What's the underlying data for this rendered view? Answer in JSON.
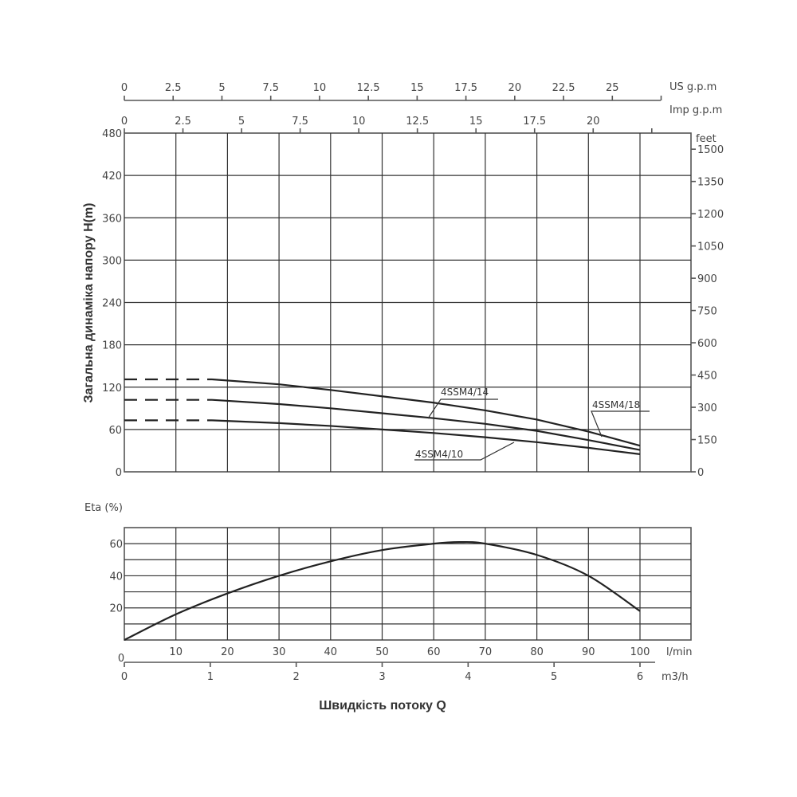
{
  "chart_data": [
    {
      "type": "line",
      "title": "",
      "ylabel": "Загальна динаміка напору H(m)",
      "xlabel": "Швидкість потоку Q",
      "x_unit": "l/min",
      "ylim": [
        0,
        480
      ],
      "xlim": [
        0,
        110
      ],
      "grid": true,
      "y_ticks": [
        0,
        60,
        120,
        180,
        240,
        300,
        360,
        420,
        480
      ],
      "y2_label": "feet",
      "y2_ticks": [
        0,
        150,
        300,
        450,
        600,
        750,
        900,
        1050,
        1200,
        1350,
        1500
      ],
      "top_axis_us": {
        "label": "US g.p.m",
        "ticks": [
          "0",
          "2.5",
          "5",
          "7.5",
          "10",
          "12.5",
          "15",
          "17.5",
          "20",
          "22.5",
          "25"
        ]
      },
      "top_axis_imp": {
        "label": "Imp g.p.m",
        "ticks": [
          "0",
          "2.5",
          "5",
          "7.5",
          "10",
          "12.5",
          "15",
          "17.5",
          "20"
        ]
      },
      "series": [
        {
          "name": "4SSM4/18",
          "dashed_x": [
            0,
            17
          ],
          "dashed_y": [
            131,
            131
          ],
          "x": [
            17,
            30,
            40,
            50,
            60,
            70,
            80,
            90,
            100
          ],
          "y": [
            131,
            124,
            116,
            107,
            98,
            87,
            74,
            57,
            37
          ]
        },
        {
          "name": "4SSM4/14",
          "dashed_x": [
            0,
            17
          ],
          "dashed_y": [
            102,
            102
          ],
          "x": [
            17,
            30,
            40,
            50,
            60,
            70,
            80,
            90,
            100
          ],
          "y": [
            102,
            96,
            90,
            83,
            76,
            68,
            58,
            45,
            31
          ]
        },
        {
          "name": "4SSM4/10",
          "dashed_x": [
            0,
            17
          ],
          "dashed_y": [
            73,
            73
          ],
          "x": [
            17,
            30,
            40,
            50,
            60,
            70,
            80,
            90,
            100
          ],
          "y": [
            73,
            69,
            65,
            60,
            55,
            49,
            42,
            34,
            25
          ]
        }
      ]
    },
    {
      "type": "line",
      "title": "",
      "ylabel": "Eta (%)",
      "xlabel": "Швидкість потоку Q",
      "ylim": [
        0,
        70
      ],
      "xlim": [
        0,
        110
      ],
      "grid": true,
      "y_ticks": [
        0,
        20,
        40,
        60
      ],
      "x_ticks_lmin": [
        0,
        10,
        20,
        30,
        40,
        50,
        60,
        70,
        80,
        90,
        100
      ],
      "x_unit": "l/min",
      "x2_ticks_m3h": [
        0,
        1,
        2,
        3,
        4,
        5,
        6
      ],
      "x2_unit": "m3/h",
      "series": [
        {
          "name": "Eta",
          "x": [
            0,
            10,
            20,
            30,
            40,
            50,
            60,
            65,
            70,
            80,
            90,
            100
          ],
          "y": [
            0,
            16,
            29,
            40,
            49,
            56,
            60,
            61,
            60,
            53,
            40,
            18
          ]
        }
      ]
    }
  ],
  "labels": {
    "head_axis": "Загальна динаміка напору H(m)",
    "flow_axis": "Швидкість потоку Q",
    "eta_axis": "Eta (%)",
    "feet": "feet",
    "us_gpm": "US g.p.m",
    "imp_gpm": "Imp g.p.m",
    "lmin": "l/min",
    "m3h": "m3/h",
    "curve_18": "4SSM4/18",
    "curve_14": "4SSM4/14",
    "curve_10": "4SSM4/10"
  }
}
